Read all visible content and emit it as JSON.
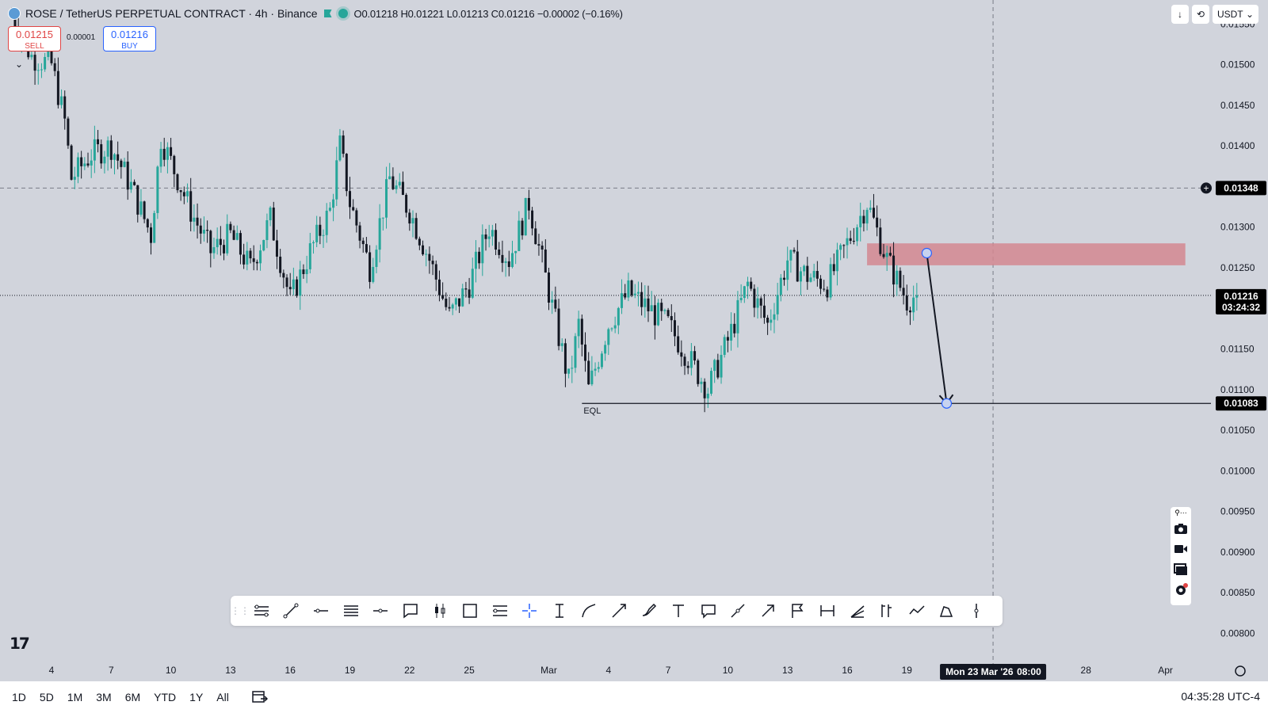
{
  "header": {
    "symbol": "ROSE",
    "pair": "/ TetherUS PERPETUAL CONTRACT · 4h · Binance",
    "ohlc": "O0.01218 H0.01221 L0.01213 C0.01216 −0.00002 (−0.16%)"
  },
  "trade": {
    "sell_price": "0.01215",
    "sell_label": "SELL",
    "spread": "0.00001",
    "buy_price": "0.01216",
    "buy_label": "BUY"
  },
  "top_right": {
    "currency": "USDT"
  },
  "colors": {
    "background": "#d1d4dc",
    "up": "#26a69a",
    "down": "#131722",
    "zone": "#d38791",
    "last_price_badge": "#000000"
  },
  "chart_data": {
    "type": "candlestick",
    "symbol": "ROSEUSDT.P",
    "interval": "4h",
    "ylim": [
      0.0078,
      0.0156
    ],
    "y_ticks": [
      "0.01550",
      "0.01500",
      "0.01450",
      "0.01400",
      "0.01350",
      "0.01300",
      "0.01250",
      "0.01200",
      "0.01150",
      "0.01100",
      "0.01050",
      "0.01000",
      "0.00950",
      "0.00900",
      "0.00850",
      "0.00800"
    ],
    "x_ticks": [
      {
        "label": "4",
        "date": "2026-02-04"
      },
      {
        "label": "7",
        "date": "2026-02-07"
      },
      {
        "label": "10",
        "date": "2026-02-10"
      },
      {
        "label": "13",
        "date": "2026-02-13"
      },
      {
        "label": "16",
        "date": "2026-02-16"
      },
      {
        "label": "19",
        "date": "2026-02-19"
      },
      {
        "label": "22",
        "date": "2026-02-22"
      },
      {
        "label": "25",
        "date": "2026-02-25"
      },
      {
        "label": "Mar",
        "date": "2026-03-01"
      },
      {
        "label": "4",
        "date": "2026-03-04"
      },
      {
        "label": "7",
        "date": "2026-03-07"
      },
      {
        "label": "10",
        "date": "2026-03-10"
      },
      {
        "label": "13",
        "date": "2026-03-13"
      },
      {
        "label": "16",
        "date": "2026-03-16"
      },
      {
        "label": "19",
        "date": "2026-03-19"
      },
      {
        "label": "28",
        "date": "2026-03-28"
      },
      {
        "label": "Apr",
        "date": "2026-04-01"
      }
    ],
    "price_path": [
      {
        "date": "2026-02-02",
        "price": 0.0156
      },
      {
        "date": "2026-02-03",
        "price": 0.0151
      },
      {
        "date": "2026-02-04",
        "price": 0.015
      },
      {
        "date": "2026-02-04T16:00",
        "price": 0.0143
      },
      {
        "date": "2026-02-05",
        "price": 0.0136
      },
      {
        "date": "2026-02-06",
        "price": 0.0139
      },
      {
        "date": "2026-02-07",
        "price": 0.014
      },
      {
        "date": "2026-02-08",
        "price": 0.0135
      },
      {
        "date": "2026-02-09",
        "price": 0.0129
      },
      {
        "date": "2026-02-09T12:00",
        "price": 0.0141
      },
      {
        "date": "2026-02-10",
        "price": 0.0138
      },
      {
        "date": "2026-02-11",
        "price": 0.0132
      },
      {
        "date": "2026-02-12",
        "price": 0.0127
      },
      {
        "date": "2026-02-13",
        "price": 0.0129
      },
      {
        "date": "2026-02-14",
        "price": 0.0125
      },
      {
        "date": "2026-02-15",
        "price": 0.0131
      },
      {
        "date": "2026-02-16",
        "price": 0.0121
      },
      {
        "date": "2026-02-17",
        "price": 0.0127
      },
      {
        "date": "2026-02-18",
        "price": 0.0132
      },
      {
        "date": "2026-02-18T12:00",
        "price": 0.014
      },
      {
        "date": "2026-02-19",
        "price": 0.0133
      },
      {
        "date": "2026-02-20",
        "price": 0.0125
      },
      {
        "date": "2026-02-21",
        "price": 0.0136
      },
      {
        "date": "2026-02-22",
        "price": 0.0132
      },
      {
        "date": "2026-02-23",
        "price": 0.0126
      },
      {
        "date": "2026-02-24",
        "price": 0.0119
      },
      {
        "date": "2026-02-25",
        "price": 0.0123
      },
      {
        "date": "2026-02-26",
        "price": 0.013
      },
      {
        "date": "2026-02-27",
        "price": 0.0126
      },
      {
        "date": "2026-02-28",
        "price": 0.0133
      },
      {
        "date": "2026-03-01",
        "price": 0.0122
      },
      {
        "date": "2026-03-02",
        "price": 0.0111
      },
      {
        "date": "2026-03-02T12:00",
        "price": 0.0118
      },
      {
        "date": "2026-03-03",
        "price": 0.011
      },
      {
        "date": "2026-03-04",
        "price": 0.0118
      },
      {
        "date": "2026-03-05",
        "price": 0.0122
      },
      {
        "date": "2026-03-06",
        "price": 0.012
      },
      {
        "date": "2026-03-07",
        "price": 0.0118
      },
      {
        "date": "2026-03-08",
        "price": 0.0114
      },
      {
        "date": "2026-03-09",
        "price": 0.011
      },
      {
        "date": "2026-03-10",
        "price": 0.0116
      },
      {
        "date": "2026-03-11",
        "price": 0.0123
      },
      {
        "date": "2026-03-12",
        "price": 0.0118
      },
      {
        "date": "2026-03-13",
        "price": 0.0126
      },
      {
        "date": "2026-03-14",
        "price": 0.0124
      },
      {
        "date": "2026-03-15",
        "price": 0.0123
      },
      {
        "date": "2026-03-16",
        "price": 0.0128
      },
      {
        "date": "2026-03-17",
        "price": 0.0133
      },
      {
        "date": "2026-03-18",
        "price": 0.0126
      },
      {
        "date": "2026-03-19",
        "price": 0.0121
      },
      {
        "date": "2026-03-19T12:00",
        "price": 0.01216
      }
    ],
    "last_price": "0.01216",
    "countdown": "03:24:32",
    "crosshair_price": "0.01348",
    "crosshair_time": "Mon 23 Mar '26",
    "crosshair_hour": "08:00",
    "drawings": {
      "zone": {
        "from": "2026-03-17",
        "to": "2026-04-02",
        "top": 0.0128,
        "bottom": 0.01253
      },
      "eql_line": {
        "from": "2026-03-02T16:00",
        "price": 0.01083,
        "label": "EQL",
        "badge": "0.01083"
      },
      "arrow": {
        "from_date": "2026-03-20",
        "from_price": 0.01268,
        "to_date": "2026-03-21",
        "to_price": 0.01083
      }
    }
  },
  "toolbar": {
    "tools": [
      "multiline-icon",
      "trend-line-icon",
      "horizontal-ray-icon",
      "parallel-channel-icon",
      "horizontal-line-icon",
      "callout-icon",
      "candles-icon",
      "rectangle-icon",
      "fib-icon",
      "crosshair-icon",
      "price-range-icon",
      "curve-icon",
      "arrow-line-icon",
      "brush-icon",
      "text-icon",
      "comment-icon",
      "path-icon",
      "arrow-icon",
      "flag-icon",
      "date-range-icon",
      "fib-fan-icon",
      "position-icon",
      "zigzag-icon",
      "pen-icon",
      "vertical-line-icon"
    ]
  },
  "ranges": [
    "1D",
    "5D",
    "1M",
    "3M",
    "6M",
    "YTD",
    "1Y",
    "All"
  ],
  "clock": "04:35:28 UTC-4"
}
